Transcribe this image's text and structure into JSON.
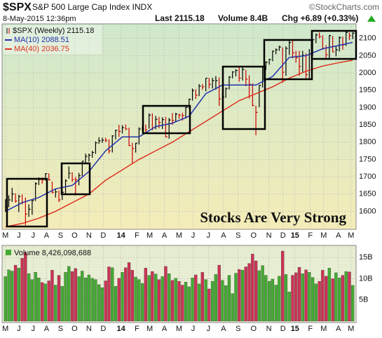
{
  "header": {
    "symbol": "$SPX",
    "name": "S&P 500 Large Cap Index INDX",
    "source": "©StockCharts.com",
    "date": "8-May-2015 12:36pm",
    "last": "Last 2115.18",
    "volume": "Volume 8.4B",
    "change": "Chg +6.89 (+0.33%)"
  },
  "annotation": "Stocks Are Very Strong",
  "chart_data": [
    {
      "type": "ohlc",
      "up_color": "#000000",
      "down_color": "#cc0000",
      "grid": true,
      "xlim": [
        -1,
        105
      ],
      "ylim": [
        1548,
        2142
      ],
      "yticks": [
        1600,
        1650,
        1700,
        1750,
        1800,
        1850,
        1900,
        1950,
        2000,
        2050,
        2100
      ],
      "xticks": [
        {
          "value": 0,
          "label": "M"
        },
        {
          "value": 4,
          "label": "J"
        },
        {
          "value": 8.3,
          "label": "J"
        },
        {
          "value": 12.3,
          "label": "A"
        },
        {
          "value": 16.5,
          "label": "S"
        },
        {
          "value": 20.7,
          "label": "O"
        },
        {
          "value": 25,
          "label": "N"
        },
        {
          "value": 29.3,
          "label": "D"
        },
        {
          "value": 34.6,
          "label": "14"
        },
        {
          "value": 39.4,
          "label": "F"
        },
        {
          "value": 43.2,
          "label": "M"
        },
        {
          "value": 47.6,
          "label": "A"
        },
        {
          "value": 52,
          "label": "M"
        },
        {
          "value": 56.2,
          "label": "J"
        },
        {
          "value": 60.8,
          "label": "J"
        },
        {
          "value": 65.3,
          "label": "A"
        },
        {
          "value": 69.7,
          "label": "S"
        },
        {
          "value": 74.3,
          "label": "O"
        },
        {
          "value": 78.9,
          "label": "N"
        },
        {
          "value": 83.1,
          "label": "D"
        },
        {
          "value": 86.7,
          "label": "15"
        },
        {
          "value": 91.3,
          "label": "F"
        },
        {
          "value": 95.3,
          "label": "M"
        },
        {
          "value": 99.7,
          "label": "A"
        },
        {
          "value": 103.5,
          "label": "M"
        }
      ],
      "series": [
        {
          "name": "$SPX (Weekly) 2115.18",
          "close": [
            1614,
            1633,
            1650,
            1630,
            1643,
            1626,
            1592,
            1606,
            1631,
            1680,
            1692,
            1691,
            1709,
            1691,
            1655,
            1656,
            1633,
            1655,
            1688,
            1710,
            1692,
            1691,
            1703,
            1745,
            1759,
            1762,
            1770,
            1798,
            1804,
            1806,
            1805,
            1775,
            1818,
            1834,
            1831,
            1842,
            1838,
            1790,
            1782,
            1797,
            1838,
            1838,
            1836,
            1878,
            1841,
            1866,
            1857,
            1865,
            1815,
            1864,
            1863,
            1881,
            1878,
            1877,
            1900,
            1924,
            1949,
            1936,
            1962,
            1960,
            1985,
            1967,
            1978,
            1978,
            1925,
            1931,
            1955,
            1988,
            2003,
            2007,
            1985,
            2010,
            1982,
            1967,
            1906,
            1886,
            1964,
            2018,
            2031,
            2039,
            2063,
            2067,
            2075,
            2002,
            2071,
            2088,
            2058,
            2044,
            2019,
            2051,
            1995,
            2055,
            2096,
            2110,
            2105,
            2071,
            2053,
            2108,
            2061,
            2067,
            2102,
            2081,
            2117,
            2108,
            2115.18
          ],
          "high": [
            1635,
            1646,
            1668,
            1652,
            1648,
            1649,
            1640,
            1620,
            1634,
            1684,
            1698,
            1698,
            1710,
            1710,
            1686,
            1664,
            1660,
            1664,
            1693,
            1730,
            1713,
            1699,
            1711,
            1745,
            1767,
            1767,
            1775,
            1802,
            1814,
            1813,
            1813,
            1808,
            1820,
            1836,
            1850,
            1849,
            1851,
            1842,
            1798,
            1798,
            1843,
            1846,
            1851,
            1883,
            1883,
            1876,
            1873,
            1872,
            1873,
            1870,
            1884,
            1885,
            1882,
            1885,
            1902,
            1926,
            1955,
            1953,
            1968,
            1968,
            1985,
            1986,
            1986,
            1991,
            1987,
            1944,
            1958,
            1991,
            2005,
            2011,
            2019,
            2019,
            2009,
            1993,
            1970,
            1905,
            1965,
            2018,
            2034,
            2041,
            2065,
            2071,
            2079,
            2074,
            2077,
            2093,
            2094,
            2064,
            2064,
            2064,
            2057,
            2069,
            2097,
            2114,
            2117,
            2109,
            2080,
            2110,
            2107,
            2077,
            2106,
            2105,
            2120,
            2117,
            2118
          ],
          "low": [
            1598,
            1612,
            1627,
            1625,
            1598,
            1620,
            1560,
            1584,
            1590,
            1630,
            1676,
            1680,
            1689,
            1689,
            1652,
            1640,
            1627,
            1633,
            1652,
            1694,
            1685,
            1646,
            1675,
            1702,
            1737,
            1744,
            1755,
            1766,
            1795,
            1798,
            1800,
            1767,
            1770,
            1808,
            1815,
            1825,
            1835,
            1789,
            1737,
            1770,
            1793,
            1832,
            1826,
            1839,
            1834,
            1837,
            1840,
            1838,
            1814,
            1810,
            1850,
            1860,
            1868,
            1862,
            1868,
            1897,
            1920,
            1925,
            1933,
            1952,
            1947,
            1955,
            1955,
            1952,
            1905,
            1904,
            1928,
            1952,
            1984,
            1990,
            1975,
            1978,
            1962,
            1926,
            1904,
            1820,
            1901,
            1958,
            2009,
            2024,
            2034,
            2054,
            2064,
            1972,
            1992,
            2052,
            2042,
            2030,
            1992,
            2003,
            1981,
            1980,
            2049,
            2086,
            2100,
            2067,
            2039,
            2040,
            2060,
            2048,
            2062,
            2067,
            2078,
            2095,
            2098
          ]
        },
        {
          "name": "MA(10) 2088.51",
          "color": "#2233aa",
          "x": [
            0,
            5,
            10,
            15,
            20,
            25,
            30,
            35,
            40,
            45,
            50,
            55,
            60,
            65,
            70,
            75,
            80,
            85,
            90,
            95,
            100,
            104
          ],
          "values": [
            1600,
            1625,
            1640,
            1665,
            1675,
            1715,
            1775,
            1815,
            1815,
            1845,
            1855,
            1875,
            1940,
            1965,
            1965,
            1965,
            1990,
            2045,
            2050,
            2070,
            2080,
            2088.51
          ]
        },
        {
          "name": "MA(40) 2036.75",
          "color": "#dd3322",
          "x": [
            0,
            5,
            10,
            15,
            20,
            25,
            30,
            35,
            40,
            45,
            50,
            55,
            60,
            65,
            70,
            75,
            80,
            85,
            90,
            95,
            100,
            104
          ],
          "values": [
            1555,
            1565,
            1580,
            1600,
            1625,
            1650,
            1690,
            1720,
            1750,
            1775,
            1800,
            1830,
            1860,
            1890,
            1920,
            1940,
            1960,
            1985,
            2005,
            2020,
            2030,
            2036.75
          ]
        }
      ]
    },
    {
      "type": "bar",
      "up_color": "#44aa33",
      "down_color": "#cc3355",
      "grid": true,
      "xlim": [
        -1,
        105
      ],
      "ylim": [
        0,
        17.5
      ],
      "yticks": [
        {
          "value": 5,
          "label": "5B"
        },
        {
          "value": 10,
          "label": "10B"
        },
        {
          "value": 15,
          "label": "15B"
        }
      ],
      "xticks": [
        {
          "value": 0,
          "label": "M"
        },
        {
          "value": 4,
          "label": "J"
        },
        {
          "value": 8.3,
          "label": "J"
        },
        {
          "value": 12.3,
          "label": "A"
        },
        {
          "value": 16.5,
          "label": "S"
        },
        {
          "value": 20.7,
          "label": "O"
        },
        {
          "value": 25,
          "label": "N"
        },
        {
          "value": 29.3,
          "label": "D"
        },
        {
          "value": 34.6,
          "label": "14"
        },
        {
          "value": 39.4,
          "label": "F"
        },
        {
          "value": 43.2,
          "label": "M"
        },
        {
          "value": 47.6,
          "label": "A"
        },
        {
          "value": 52,
          "label": "M"
        },
        {
          "value": 56.2,
          "label": "J"
        },
        {
          "value": 60.8,
          "label": "J"
        },
        {
          "value": 65.3,
          "label": "A"
        },
        {
          "value": 69.7,
          "label": "S"
        },
        {
          "value": 74.3,
          "label": "O"
        },
        {
          "value": 78.9,
          "label": "N"
        },
        {
          "value": 83.1,
          "label": "D"
        },
        {
          "value": 86.7,
          "label": "15"
        },
        {
          "value": 91.3,
          "label": "F"
        },
        {
          "value": 95.3,
          "label": "M"
        },
        {
          "value": 99.7,
          "label": "A"
        },
        {
          "value": 103.5,
          "label": "M"
        }
      ],
      "series": [
        {
          "name": "Volume 8,426,098,688",
          "values": [
            10.5,
            12.1,
            11.8,
            13.2,
            12.5,
            14.8,
            16.2,
            11.2,
            9.8,
            11.5,
            10.2,
            9.1,
            8.8,
            9.5,
            12.0,
            8.5,
            10.8,
            8.2,
            11.5,
            12.9,
            11.7,
            12.4,
            10.5,
            11.8,
            10.2,
            10.9,
            10.1,
            9.8,
            8.6,
            7.9,
            9.5,
            12.8,
            12.6,
            8.2,
            10.1,
            11.5,
            12.6,
            13.8,
            12.0,
            10.4,
            9.8,
            8.9,
            12.5,
            10.8,
            11.7,
            11.1,
            9.8,
            10.5,
            12.9,
            11.2,
            9.6,
            10.1,
            9.4,
            8.5,
            9.2,
            8.1,
            10.2,
            10.9,
            8.8,
            11.5,
            9.8,
            7.6,
            9.4,
            11.0,
            13.2,
            9.6,
            8.4,
            10.8,
            6.5,
            11.3,
            12.2,
            12.0,
            12.8,
            13.6,
            15.8,
            14.2,
            11.9,
            13.1,
            10.8,
            9.4,
            9.9,
            8.5,
            10.6,
            16.5,
            11.0,
            6.9,
            10.8,
            11.4,
            12.7,
            11.2,
            12.1,
            11.5,
            10.3,
            8.8,
            9.4,
            12.0,
            10.6,
            12.5,
            10.0,
            11.4,
            10.2,
            10.8,
            11.7,
            11.6,
            8.43
          ]
        }
      ]
    }
  ]
}
